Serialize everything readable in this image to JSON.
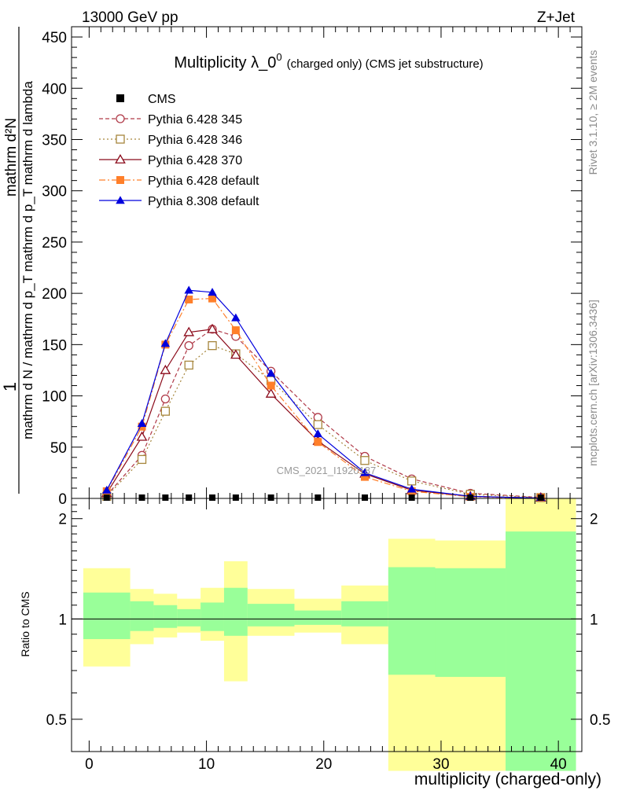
{
  "header": {
    "beam": "13000 GeV pp",
    "process": "Z+Jet",
    "title_main": "Multiplicity λ_0",
    "title_sup": "0",
    "title_rest": "(charged only) (CMS jet substructure)",
    "watermark": "CMS_2021_I1920187",
    "side_rivet": "Rivet 3.1.10, ≥ 2M events",
    "side_mcplots": "mcplots.cern.ch [arXiv:1306.3436]"
  },
  "axes": {
    "ylabel_top_one": "1",
    "ylabel_top_num": "mathrm d²N",
    "ylabel_top_den": "mathrm d N / mathrm d p_T mathrm d p_T mathrm d lambda",
    "ylabel_ratio": "Ratio to CMS",
    "xlabel": "multiplicity (charged-only)",
    "x_ticks": [
      "0",
      "10",
      "20",
      "30",
      "40"
    ],
    "y_ticks_top": [
      "0",
      "50",
      "100",
      "150",
      "200",
      "250",
      "300",
      "350",
      "400",
      "450"
    ],
    "y_ticks_ratio": [
      "0.5",
      "1",
      "2"
    ]
  },
  "legend": [
    {
      "label": "CMS",
      "color": "#000000",
      "marker": "square-filled"
    },
    {
      "label": "Pythia 6.428 345",
      "color": "#b03a48",
      "marker": "circle-open"
    },
    {
      "label": "Pythia 6.428 346",
      "color": "#a6863c",
      "marker": "square-open"
    },
    {
      "label": "Pythia 6.428 370",
      "color": "#8b0a1a",
      "marker": "triangle-open"
    },
    {
      "label": "Pythia 6.428 default",
      "color": "#ff7f2a",
      "marker": "square-filled"
    },
    {
      "label": "Pythia 8.308 default",
      "color": "#0000dd",
      "marker": "triangle-filled"
    }
  ],
  "chart_data": {
    "type": "line",
    "xlabel": "multiplicity (charged-only)",
    "ylabel": "1 / mathrm d N / mathrm d p_T mathrm d p_T mathrm d lambda · mathrm d²N",
    "xlim": [
      -1.5,
      42
    ],
    "ylim": [
      0,
      460
    ],
    "ratio_ylim": [
      0.4,
      2.3
    ],
    "grid": false,
    "legend_position": "top-left",
    "x": [
      1.5,
      4.5,
      6.5,
      8.5,
      10.5,
      12.5,
      15.5,
      19.5,
      23.5,
      27.5,
      32.5,
      38.5
    ],
    "series": [
      {
        "name": "CMS",
        "values": [
          0.4,
          0.4,
          0.4,
          0.4,
          0.4,
          0.4,
          0.4,
          0.4,
          0.4,
          0.4,
          0.4,
          0.4
        ]
      },
      {
        "name": "Pythia 6.428 345",
        "values": [
          3,
          42,
          97,
          149,
          165,
          158,
          124,
          79,
          41,
          19,
          5,
          1
        ]
      },
      {
        "name": "Pythia 6.428 346",
        "values": [
          2,
          38,
          85,
          130,
          149,
          141,
          115,
          72,
          37,
          17,
          4,
          0.8
        ]
      },
      {
        "name": "Pythia 6.428 370",
        "values": [
          5,
          60,
          125,
          162,
          165,
          140,
          102,
          56,
          24,
          8,
          2,
          0.3
        ]
      },
      {
        "name": "Pythia 6.428 default",
        "values": [
          7,
          70,
          150,
          194,
          195,
          164,
          110,
          55,
          21,
          7,
          1.5,
          0.2
        ]
      },
      {
        "name": "Pythia 8.308 default",
        "values": [
          8,
          73,
          151,
          203,
          201,
          176,
          122,
          63,
          25,
          9,
          2,
          0.3
        ]
      }
    ],
    "ratio_bands": {
      "edges": [
        -0.5,
        3.5,
        5.5,
        7.5,
        9.5,
        11.5,
        13.5,
        17.5,
        21.5,
        25.5,
        29.5,
        35.5,
        41.5
      ],
      "stat_low": [
        0.87,
        0.92,
        0.94,
        0.95,
        0.92,
        0.89,
        0.95,
        0.96,
        0.95,
        0.68,
        0.67,
        0.35
      ],
      "stat_high": [
        1.2,
        1.13,
        1.1,
        1.07,
        1.12,
        1.24,
        1.11,
        1.06,
        1.13,
        1.43,
        1.42,
        1.83
      ],
      "total_low": [
        0.72,
        0.84,
        0.88,
        0.91,
        0.86,
        0.65,
        0.89,
        0.91,
        0.84,
        0.35,
        0.35,
        0.35
      ],
      "total_high": [
        1.42,
        1.23,
        1.19,
        1.15,
        1.24,
        1.49,
        1.23,
        1.15,
        1.26,
        1.74,
        1.72,
        2.3
      ]
    },
    "colors": {
      "stat_band": "#99ff99",
      "total_band": "#ffff99"
    }
  }
}
